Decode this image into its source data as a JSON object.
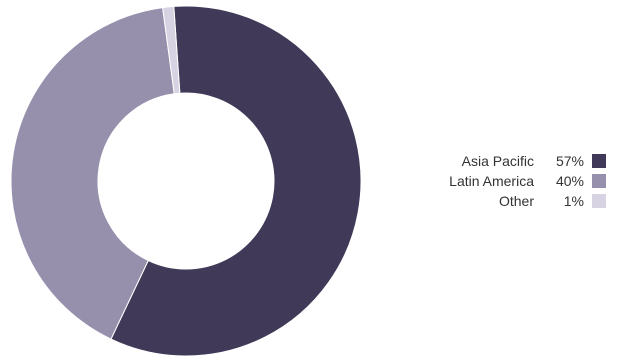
{
  "chart_data": {
    "type": "pie",
    "donut": true,
    "title": "",
    "categories": [
      "Asia Pacific",
      "Latin America",
      "Other"
    ],
    "values": [
      57,
      40,
      1
    ],
    "value_labels": [
      "57%",
      "40%",
      "1%"
    ],
    "colors": [
      "#403a58",
      "#9690ad",
      "#d7d3e3"
    ],
    "legend_position": "right"
  }
}
